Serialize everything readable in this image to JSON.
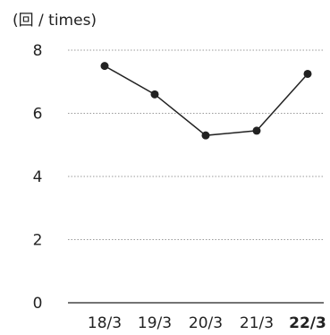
{
  "chart_data": {
    "type": "line",
    "y_unit_label": "(回 / times)",
    "categories": [
      "18/3",
      "19/3",
      "20/3",
      "21/3",
      "22/3"
    ],
    "highlighted_category": "22/3",
    "values": [
      7.5,
      6.6,
      5.3,
      5.45,
      7.25
    ],
    "yticks": [
      "0",
      "2",
      "4",
      "6",
      "8"
    ],
    "ylim": [
      0,
      8
    ],
    "grid": "dotted horizontal",
    "colors": {
      "line": "#222222",
      "grid": "#9a9a9a",
      "axis": "#222222",
      "text": "#222222"
    }
  }
}
